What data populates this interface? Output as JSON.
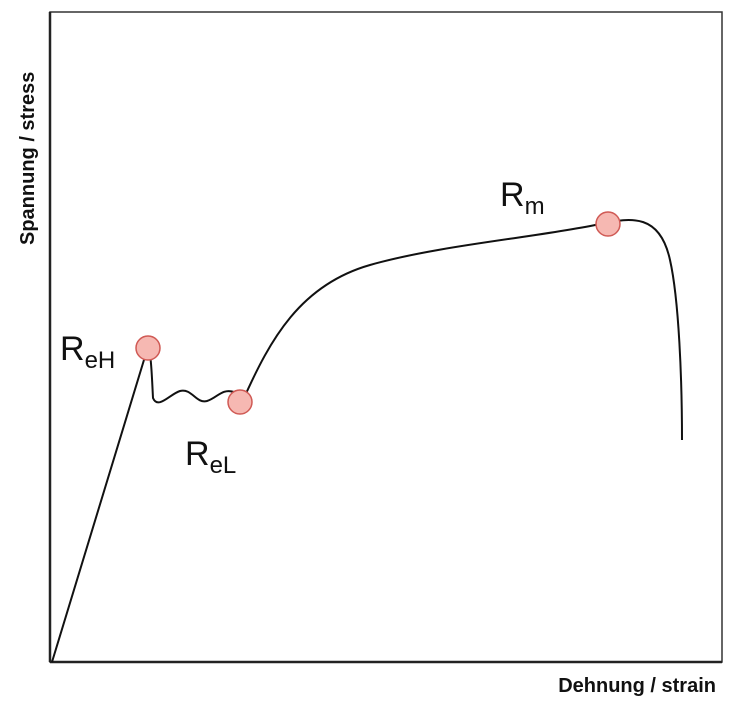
{
  "axes": {
    "y_label": "Spannung / stress",
    "x_label": "Dehnung / strain"
  },
  "points": [
    {
      "main": "R",
      "sub": "eH"
    },
    {
      "main": "R",
      "sub": "eL"
    },
    {
      "main": "R",
      "sub": "m"
    }
  ]
}
